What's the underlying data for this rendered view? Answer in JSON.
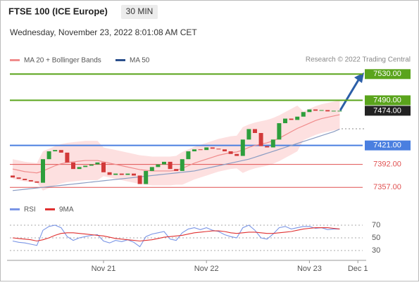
{
  "header": {
    "title": "FTSE 100 (ICE Europe)",
    "timeframe": "30 MIN",
    "datetime": "Wednesday, November 23, 2022 8:01:08 AM CET",
    "credit": "Research © 2022 Trading Central"
  },
  "chart_data": [
    {
      "type": "candlestick",
      "categories": [
        null,
        null,
        null,
        null,
        null,
        null,
        null,
        null,
        null,
        null,
        null,
        null,
        null,
        null,
        null,
        "Nov 21",
        null,
        null,
        null,
        null,
        null,
        null,
        null,
        null,
        null,
        null,
        null,
        null,
        null,
        null,
        null,
        null,
        "Nov 22",
        null,
        null,
        null,
        null,
        null,
        null,
        null,
        null,
        null,
        null,
        null,
        null,
        null,
        null,
        null,
        null,
        "Nov 23",
        null,
        null,
        null,
        null,
        null,
        null,
        null,
        "Dec 1"
      ],
      "open": [
        7375,
        7372,
        7370,
        7368,
        7366,
        7364,
        7400,
        7412,
        7414,
        7410,
        7395,
        7385,
        7388,
        7390,
        7392,
        7395,
        7380,
        7376,
        7378,
        7376,
        7378,
        7375,
        7362,
        7382,
        7388,
        7392,
        7396,
        7385,
        7382,
        7400,
        7412,
        7415,
        7414,
        7418,
        7416,
        7415,
        7412,
        7408,
        7405,
        7430,
        7446,
        7440,
        7420,
        7418,
        7430,
        7455,
        7462,
        7460,
        7465,
        7472,
        7476,
        7474,
        7475,
        7473,
        7474,
        null,
        null,
        null
      ],
      "close": [
        7372,
        7370,
        7368,
        7366,
        7364,
        7400,
        7412,
        7414,
        7410,
        7395,
        7385,
        7388,
        7390,
        7392,
        7395,
        7380,
        7376,
        7378,
        7376,
        7378,
        7375,
        7362,
        7382,
        7388,
        7392,
        7396,
        7385,
        7382,
        7400,
        7412,
        7415,
        7414,
        7418,
        7416,
        7415,
        7412,
        7408,
        7405,
        7430,
        7446,
        7440,
        7420,
        7418,
        7430,
        7455,
        7462,
        7460,
        7465,
        7472,
        7476,
        7474,
        7475,
        7473,
        7474,
        7474,
        null,
        null,
        null
      ],
      "up_color": "#2e9e3c",
      "down_color": "#d23a3a",
      "ylim": [
        7340,
        7540
      ],
      "series": [
        {
          "name": "MA 20 + Bollinger Bands",
          "color": "#f08c8c",
          "band_color": "#fde0e0",
          "values": [
            7385,
            7383,
            7381,
            7380,
            7379,
            7382,
            7386,
            7390,
            7393,
            7395,
            7396,
            7397,
            7398,
            7398,
            7398,
            7396,
            7394,
            7392,
            7390,
            7388,
            7386,
            7384,
            7383,
            7382,
            7382,
            7382,
            7382,
            7383,
            7386,
            7390,
            7394,
            7397,
            7400,
            7403,
            7406,
            7408,
            7410,
            7411,
            7414,
            7418,
            7421,
            7423,
            7425,
            7428,
            7432,
            7437,
            7442,
            7447,
            7451,
            7455,
            7459,
            7462,
            7464,
            7466,
            7468,
            null,
            null,
            null
          ],
          "upper": [
            7400,
            7398,
            7396,
            7395,
            7394,
            7412,
            7416,
            7420,
            7423,
            7425,
            7426,
            7427,
            7428,
            7428,
            7428,
            7418,
            7416,
            7414,
            7412,
            7410,
            7408,
            7406,
            7405,
            7404,
            7404,
            7404,
            7404,
            7405,
            7411,
            7415,
            7419,
            7422,
            7425,
            7428,
            7431,
            7433,
            7435,
            7436,
            7449,
            7453,
            7456,
            7458,
            7460,
            7463,
            7467,
            7472,
            7477,
            7482,
            7473,
            7477,
            7481,
            7484,
            7486,
            7488,
            7490,
            null,
            null,
            null
          ],
          "lower": [
            7370,
            7368,
            7366,
            7365,
            7364,
            7352,
            7356,
            7360,
            7363,
            7365,
            7366,
            7367,
            7368,
            7368,
            7368,
            7374,
            7372,
            7370,
            7368,
            7366,
            7364,
            7362,
            7361,
            7360,
            7360,
            7360,
            7360,
            7361,
            7361,
            7365,
            7369,
            7372,
            7375,
            7378,
            7381,
            7383,
            7385,
            7386,
            7379,
            7383,
            7386,
            7388,
            7390,
            7393,
            7397,
            7402,
            7407,
            7412,
            7429,
            7433,
            7437,
            7440,
            7442,
            7444,
            7446,
            null,
            null,
            null
          ]
        },
        {
          "name": "MA 50",
          "color": "#8a9cc2",
          "legend_color": "#2b4f8c",
          "values": [
            7352,
            7353,
            7354,
            7355,
            7356,
            7357,
            7358,
            7359,
            7360,
            7361,
            7362,
            7363,
            7364,
            7365,
            7366,
            7367,
            7368,
            7369,
            7370,
            7371,
            7372,
            7373,
            7374,
            7375,
            7376,
            7377,
            7378,
            7379,
            7380,
            7381,
            7382,
            7384,
            7386,
            7388,
            7390,
            7392,
            7394,
            7396,
            7398,
            7400,
            7403,
            7406,
            7409,
            7412,
            7415,
            7418,
            7421,
            7424,
            7427,
            7430,
            7433,
            7436,
            7439,
            7442,
            7446,
            null,
            null,
            null
          ]
        }
      ],
      "levels": [
        {
          "value": 7530,
          "label": "7530.00",
          "color": "#5aa41c",
          "line": true,
          "box": true
        },
        {
          "value": 7490,
          "label": "7490.00",
          "color": "#5aa41c",
          "line": true,
          "box": true
        },
        {
          "value": 7474,
          "label": "7474.00",
          "color": "#222222",
          "line": false,
          "box": true
        },
        {
          "value": 7421,
          "label": "7421.00",
          "color": "#4a7fe0",
          "line": true,
          "box": true
        },
        {
          "value": 7392,
          "label": "7392.00",
          "color": "#e05050",
          "line": true,
          "box": false
        },
        {
          "value": 7357,
          "label": "7357.00",
          "color": "#e05050",
          "line": true,
          "box": false
        }
      ]
    },
    {
      "type": "line",
      "ylim": [
        20,
        80
      ],
      "yticks": [
        30,
        50,
        70
      ],
      "series": [
        {
          "name": "RSI",
          "color": "#7a95e6",
          "values": [
            45,
            43,
            42,
            40,
            38,
            62,
            68,
            70,
            66,
            52,
            46,
            50,
            52,
            54,
            55,
            45,
            42,
            46,
            44,
            47,
            43,
            36,
            52,
            56,
            58,
            60,
            48,
            46,
            58,
            64,
            66,
            63,
            66,
            62,
            60,
            55,
            52,
            50,
            66,
            70,
            62,
            50,
            48,
            56,
            66,
            68,
            64,
            66,
            68,
            68,
            65,
            66,
            63,
            64,
            64
          ]
        },
        {
          "name": "9MA",
          "color": "#e03030",
          "values": [
            50,
            49,
            48,
            47,
            45,
            47,
            50,
            54,
            57,
            58,
            58,
            57,
            56,
            55,
            54,
            53,
            51,
            49,
            48,
            47,
            46,
            45,
            46,
            47,
            49,
            51,
            52,
            53,
            54,
            56,
            58,
            59,
            60,
            61,
            61,
            60,
            58,
            57,
            58,
            59,
            59,
            58,
            57,
            57,
            58,
            59,
            60,
            62,
            64,
            65,
            66,
            66,
            66,
            65,
            64
          ]
        }
      ]
    }
  ]
}
